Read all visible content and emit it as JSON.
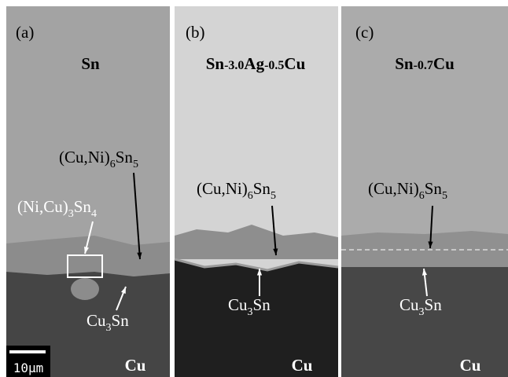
{
  "panels": [
    {
      "label": "(a)",
      "alloy": [
        "Sn"
      ],
      "substrate": "Cu",
      "annotations": [
        {
          "parts": [
            "(Cu,Ni)",
            "6",
            "Sn",
            "5"
          ]
        },
        {
          "parts": [
            "(Ni,Cu)",
            "3",
            "Sn",
            "4"
          ]
        },
        {
          "parts": [
            "Cu",
            "3",
            "Sn"
          ]
        }
      ]
    },
    {
      "label": "(b)",
      "alloy": [
        "Sn",
        "-3.0",
        "Ag",
        "-0.5",
        "Cu"
      ],
      "substrate": "Cu",
      "annotations": [
        {
          "parts": [
            "(Cu,Ni)",
            "6",
            "Sn",
            "5"
          ]
        },
        {
          "parts": [
            "Cu",
            "3",
            "Sn"
          ]
        }
      ]
    },
    {
      "label": "(c)",
      "alloy": [
        "Sn",
        "-0.7",
        "Cu"
      ],
      "substrate": "Cu",
      "annotations": [
        {
          "parts": [
            "(Cu,Ni)",
            "6",
            "Sn",
            "5"
          ]
        },
        {
          "parts": [
            "Cu",
            "3",
            "Sn"
          ]
        }
      ]
    }
  ],
  "scale_bar": "10μm"
}
